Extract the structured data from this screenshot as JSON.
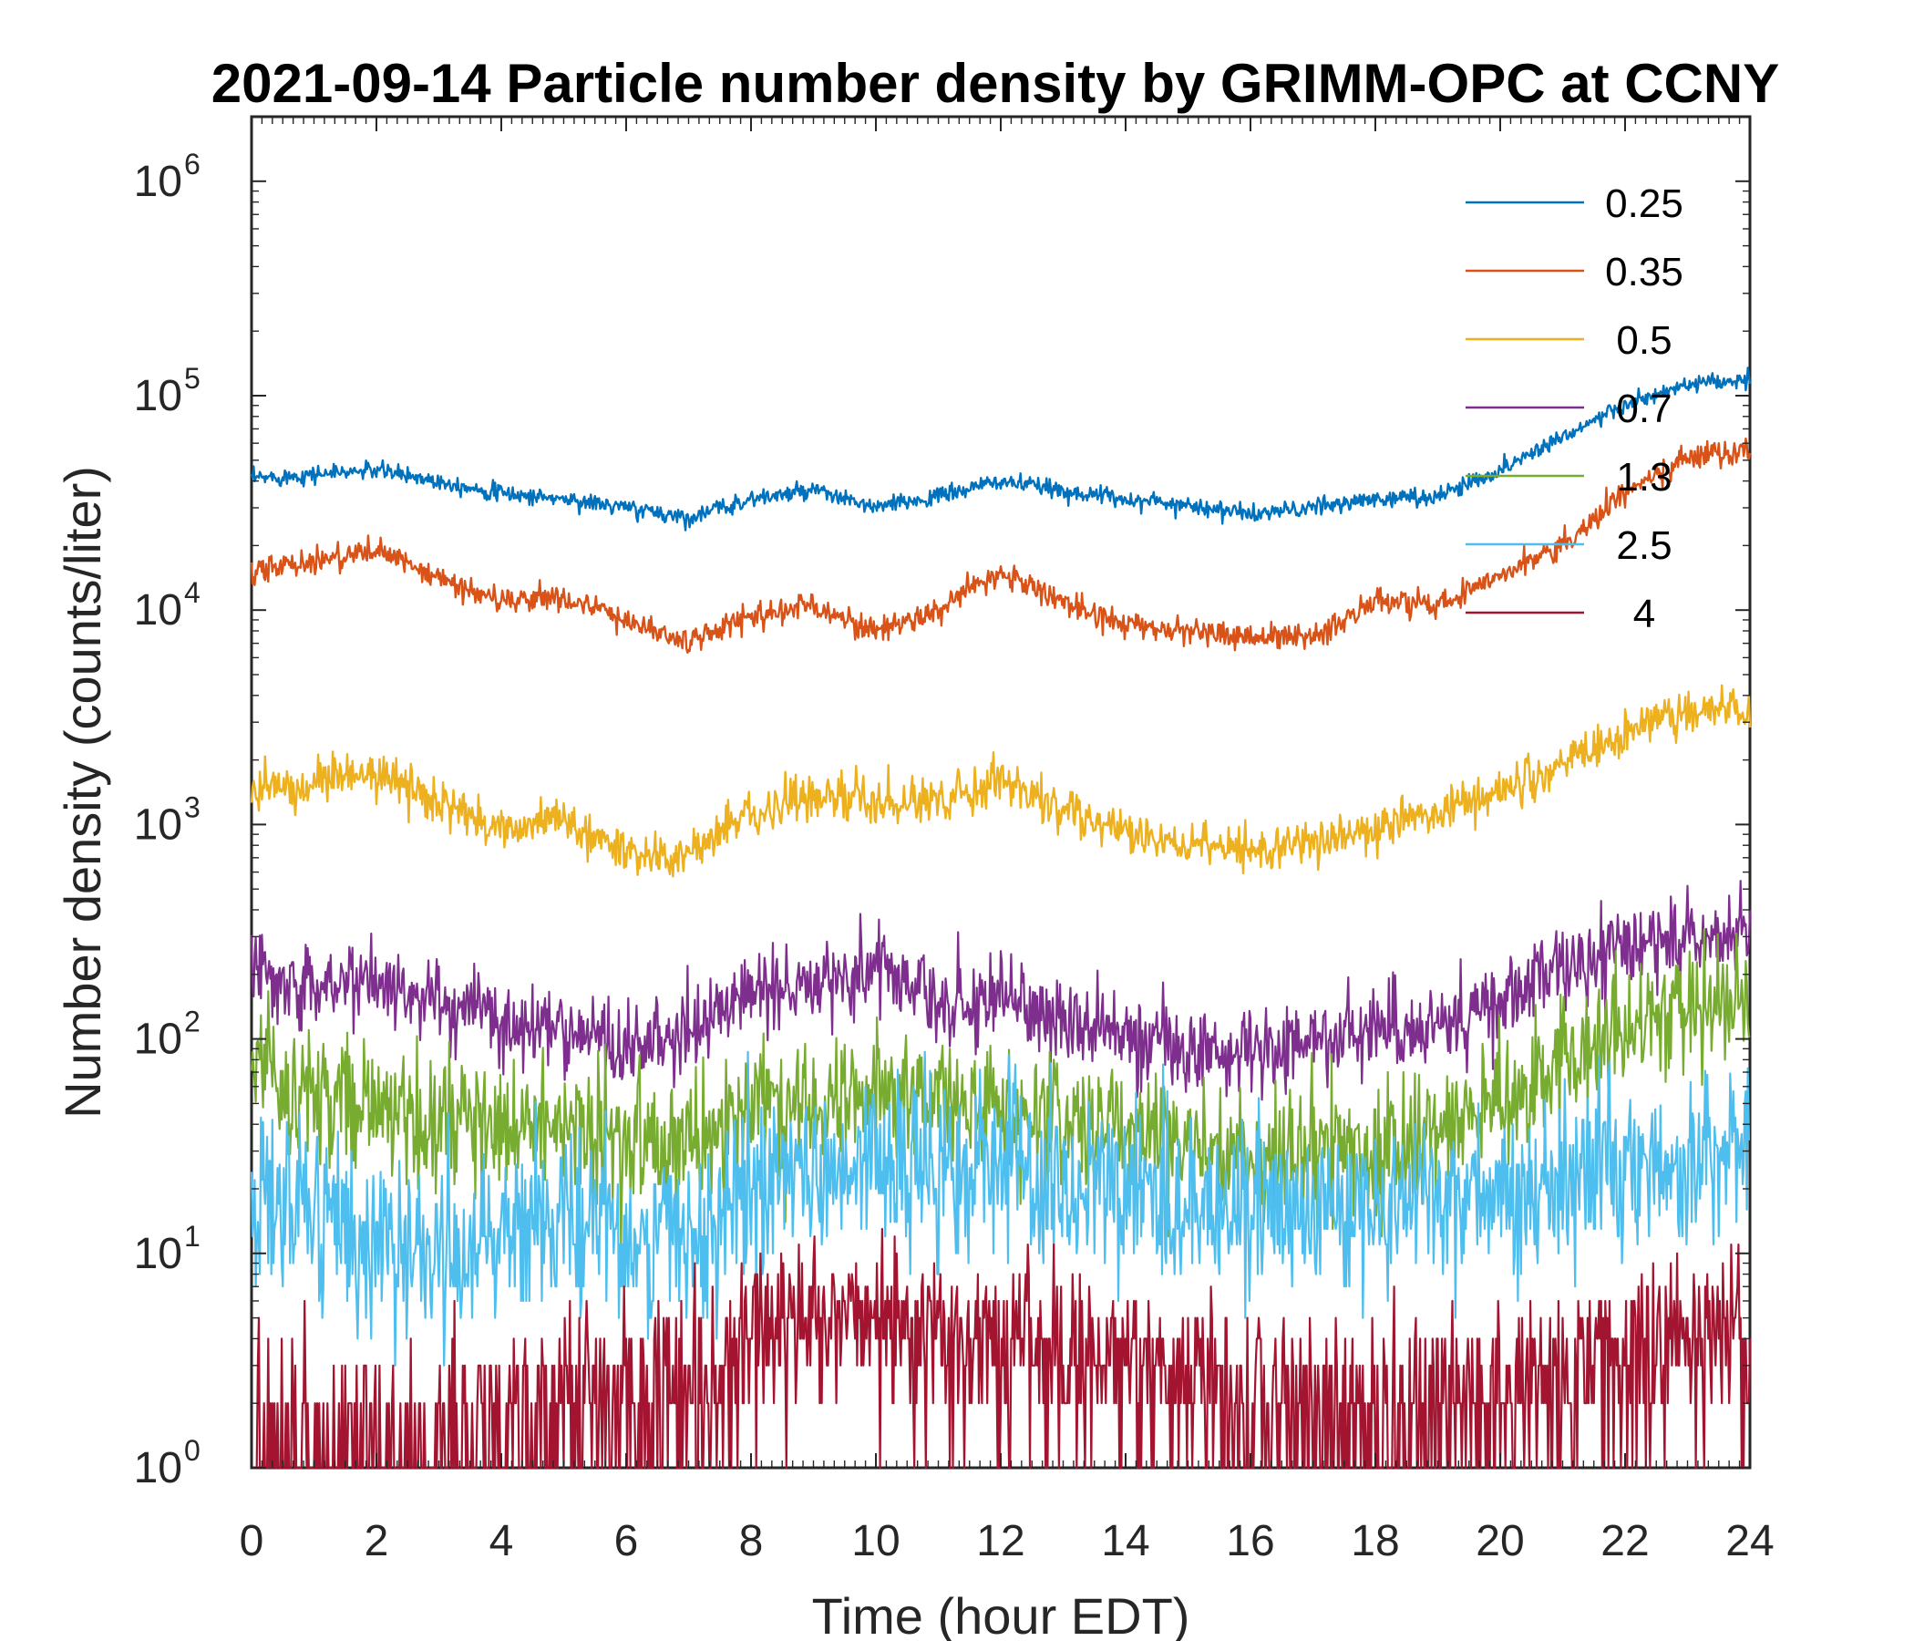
{
  "chart_data": {
    "type": "line",
    "title": "2021-09-14 Particle number density by GRIMM-OPC at CCNY",
    "xlabel": "Time (hour EDT)",
    "ylabel": "Number density (counts/liter)",
    "xlim": [
      0,
      24
    ],
    "ylim": [
      1,
      2000000
    ],
    "yscale": "log",
    "grid": false,
    "legend_position": "top-right",
    "x_ticks": [
      0,
      2,
      4,
      6,
      8,
      10,
      12,
      14,
      16,
      18,
      20,
      22,
      24
    ],
    "x_tick_labels": [
      "0",
      "2",
      "4",
      "6",
      "8",
      "10",
      "12",
      "14",
      "16",
      "18",
      "20",
      "22",
      "24"
    ],
    "y_ticks": [
      {
        "value": 1,
        "base": "10",
        "exp": "0"
      },
      {
        "value": 10,
        "base": "10",
        "exp": "1"
      },
      {
        "value": 100,
        "base": "10",
        "exp": "2"
      },
      {
        "value": 1000,
        "base": "10",
        "exp": "3"
      },
      {
        "value": 10000,
        "base": "10",
        "exp": "4"
      },
      {
        "value": 100000,
        "base": "10",
        "exp": "5"
      },
      {
        "value": 1000000,
        "base": "10",
        "exp": "6"
      }
    ],
    "x": [
      0,
      1,
      2,
      3,
      4,
      5,
      6,
      7,
      8,
      9,
      10,
      11,
      12,
      13,
      14,
      15,
      16,
      17,
      18,
      19,
      20,
      21,
      22,
      23,
      24
    ],
    "series": [
      {
        "name": "0.25",
        "color": "#0072BD",
        "noise": 0.04,
        "values": [
          41000,
          43000,
          45000,
          40000,
          35000,
          33000,
          30000,
          27000,
          33000,
          36000,
          30000,
          34000,
          40000,
          36000,
          33000,
          31000,
          28000,
          30000,
          33000,
          34000,
          45000,
          65000,
          90000,
          112000,
          118000
        ]
      },
      {
        "name": "0.35",
        "color": "#D95319",
        "noise": 0.06,
        "values": [
          15000,
          17000,
          19000,
          14000,
          11000,
          11500,
          9000,
          7000,
          9500,
          10500,
          8000,
          10000,
          15000,
          11000,
          8500,
          8000,
          7500,
          7500,
          11000,
          10500,
          15000,
          20000,
          35000,
          52000,
          55000
        ]
      },
      {
        "name": "0.5",
        "color": "#EDB120",
        "noise": 0.1,
        "values": [
          1450,
          1550,
          1750,
          1250,
          950,
          1050,
          750,
          700,
          1150,
          1350,
          1250,
          1300,
          1650,
          1150,
          900,
          800,
          750,
          850,
          950,
          1150,
          1450,
          1850,
          2700,
          3400,
          3500
        ]
      },
      {
        "name": "0.7",
        "color": "#7E2F8E",
        "noise": 0.2,
        "values": [
          210,
          190,
          180,
          150,
          120,
          115,
          90,
          110,
          160,
          190,
          220,
          150,
          150,
          120,
          105,
          90,
          85,
          100,
          110,
          120,
          150,
          210,
          260,
          300,
          320
        ]
      },
      {
        "name": "1.3",
        "color": "#77AC30",
        "noise": 0.3,
        "values": [
          85,
          55,
          45,
          38,
          38,
          38,
          33,
          35,
          48,
          52,
          58,
          50,
          48,
          40,
          36,
          33,
          28,
          30,
          30,
          36,
          50,
          75,
          110,
          140,
          145
        ]
      },
      {
        "name": "2.5",
        "color": "#4DBEEE",
        "noise": 0.42,
        "values": [
          18,
          13,
          11,
          9,
          13,
          15,
          13,
          11,
          20,
          23,
          28,
          22,
          24,
          18,
          20,
          18,
          14,
          15,
          16,
          17,
          18,
          20,
          24,
          28,
          30
        ]
      },
      {
        "name": "4",
        "color": "#A2142F",
        "noise": 0.8,
        "values": [
          1,
          1,
          1,
          1.3,
          1.8,
          2,
          2.2,
          2.5,
          4.5,
          5.5,
          5,
          4.5,
          4,
          3.5,
          3.5,
          3,
          2.2,
          2,
          2,
          2,
          2.5,
          3,
          3.5,
          4,
          4
        ]
      }
    ]
  }
}
